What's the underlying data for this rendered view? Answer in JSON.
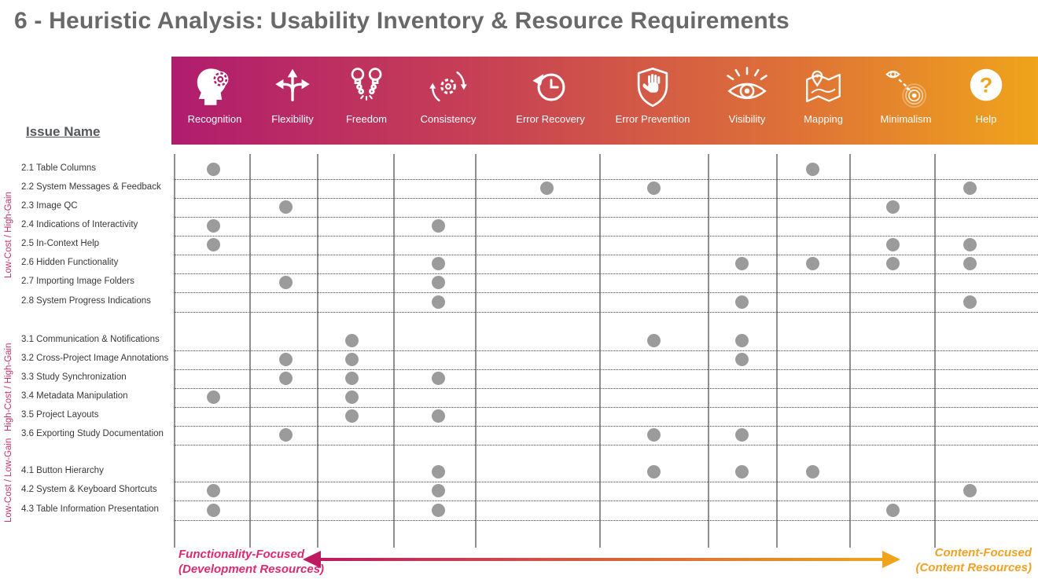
{
  "title": "6 - Heuristic Analysis: Usability Inventory & Resource Requirements",
  "issue_name_header": "Issue Name",
  "footer": {
    "left_line1": "Functionality-Focused",
    "left_line2": "(Development Resources)",
    "right_line1": "Content-Focused",
    "right_line2": "(Content Resources)"
  },
  "colors": {
    "band_gradient_start": "#B01C6E",
    "band_gradient_mid1": "#C84353",
    "band_gradient_mid2": "#DE7237",
    "band_gradient_end": "#EFA41B",
    "dot": "#9B9B9B",
    "grid_line": "#8F8F8F",
    "group_label": "#C2336B",
    "left_caption": "#DB2A74",
    "right_caption": "#F0A125",
    "arrow_start": "#BE1A62",
    "arrow_end": "#EFA41B",
    "title_text": "#696969",
    "row_text": "#383838",
    "header_text": "#FFFFFF"
  },
  "chart_data": {
    "type": "heatmap",
    "title": "6 - Heuristic Analysis: Usability Inventory & Resource Requirements",
    "legend": "none",
    "columns": [
      {
        "label": "Recognition",
        "icon": "recognition-icon"
      },
      {
        "label": "Flexibility",
        "icon": "flexibility-icon"
      },
      {
        "label": "Freedom",
        "icon": "freedom-icon"
      },
      {
        "label": "Consistency",
        "icon": "consistency-icon"
      },
      {
        "label": "Error Recovery",
        "icon": "error-recovery-icon"
      },
      {
        "label": "Error Prevention",
        "icon": "error-prevention-icon"
      },
      {
        "label": "Visibility",
        "icon": "visibility-icon"
      },
      {
        "label": "Mapping",
        "icon": "mapping-icon"
      },
      {
        "label": "Minimalism",
        "icon": "minimalism-icon"
      },
      {
        "label": "Help",
        "icon": "help-icon"
      }
    ],
    "groups": [
      {
        "label": "Low-Cost / High-Gain",
        "rows": [
          {
            "label": "2.1 Table Columns",
            "marks": [
              "Recognition",
              "Mapping"
            ]
          },
          {
            "label": "2.2 System Messages & Feedback",
            "marks": [
              "Error Recovery",
              "Error Prevention",
              "Help"
            ]
          },
          {
            "label": "2.3 Image QC",
            "marks": [
              "Flexibility",
              "Minimalism"
            ]
          },
          {
            "label": "2.4 Indications of Interactivity",
            "marks": [
              "Recognition",
              "Consistency"
            ]
          },
          {
            "label": "2.5 In-Context Help",
            "marks": [
              "Recognition",
              "Minimalism",
              "Help"
            ]
          },
          {
            "label": "2.6 Hidden Functionality",
            "marks": [
              "Consistency",
              "Visibility",
              "Mapping",
              "Minimalism",
              "Help"
            ]
          },
          {
            "label": "2.7 Importing Image Folders",
            "marks": [
              "Flexibility",
              "Consistency"
            ]
          },
          {
            "label": "2.8 System Progress Indications",
            "marks": [
              "Consistency",
              "Visibility",
              "Help"
            ]
          }
        ]
      },
      {
        "label": "High-Cost / High-Gain",
        "rows": [
          {
            "label": "3.1 Communication & Notifications",
            "marks": [
              "Freedom",
              "Error Prevention",
              "Visibility"
            ]
          },
          {
            "label": "3.2 Cross-Project Image Annotations",
            "marks": [
              "Flexibility",
              "Freedom",
              "Visibility"
            ]
          },
          {
            "label": "3.3 Study Synchronization",
            "marks": [
              "Flexibility",
              "Freedom",
              "Consistency"
            ]
          },
          {
            "label": "3.4 Metadata Manipulation",
            "marks": [
              "Recognition",
              "Freedom"
            ]
          },
          {
            "label": "3.5 Project Layouts",
            "marks": [
              "Freedom",
              "Consistency"
            ]
          },
          {
            "label": "3.6 Exporting Study Documentation",
            "marks": [
              "Flexibility",
              "Error Prevention",
              "Visibility"
            ]
          }
        ]
      },
      {
        "label": "Low-Cost / Low-Gain",
        "rows": [
          {
            "label": "4.1 Button Hierarchy",
            "marks": [
              "Consistency",
              "Error Prevention",
              "Visibility",
              "Mapping"
            ]
          },
          {
            "label": "4.2 System & Keyboard Shortcuts",
            "marks": [
              "Recognition",
              "Consistency",
              "Help"
            ]
          },
          {
            "label": "4.3 Table Information Presentation",
            "marks": [
              "Recognition",
              "Consistency",
              "Minimalism"
            ]
          }
        ]
      }
    ]
  }
}
